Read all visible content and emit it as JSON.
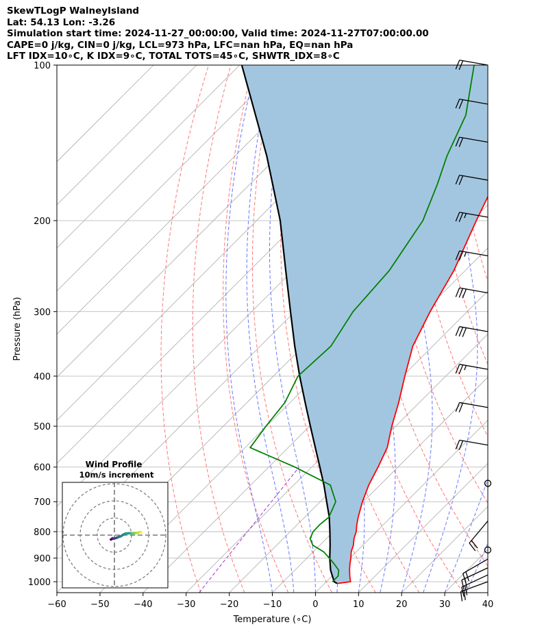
{
  "header": {
    "lines": [
      "SkewTLogP WalneyIsland",
      "Lat: 54.13   Lon: -3.26",
      "Simulation start time: 2024-11-27_00:00:00, Valid time: 2024-11-27T07:00:00.00",
      "CAPE=0 j/kg, CIN=0 j/kg, LCL=973 hPa, LFC=nan hPa, EQ=nan hPa",
      "LFT IDX=10∘C, K IDX=9∘C, TOTAL TOTS=45∘C, SHWTR_IDX=8∘C"
    ]
  },
  "chart_data": {
    "type": "line",
    "title": "SkewTLogP WalneyIsland",
    "xlabel": "Temperature (∘C)",
    "ylabel": "Pressure (hPa)",
    "xlim": [
      -60,
      40
    ],
    "ylim": [
      1050,
      100
    ],
    "y_scale": "log",
    "x_ticks": [
      "−60",
      "−50",
      "−40",
      "−30",
      "−20",
      "−10",
      "0",
      "10",
      "20",
      "30",
      "40"
    ],
    "y_ticks": [
      "1000",
      "900",
      "800",
      "700",
      "600",
      "500",
      "400",
      "300",
      "200",
      "100"
    ],
    "grid": true,
    "colors": {
      "temperature": "#ff0000",
      "dewpoint": "#008000",
      "parcel": "#000000",
      "cape_shading": "#a3c6e0",
      "dry_adiabats": "#ff6666",
      "moist_adiabats": "#5566ff",
      "mixing_ratio": "#9b30d0",
      "isotherms": "#aaaaaa"
    },
    "series": [
      {
        "role": "temperature",
        "points": [
          [
            1008,
            2.9
          ],
          [
            1000,
            5.6
          ],
          [
            975,
            4.1
          ],
          [
            950,
            2.7
          ],
          [
            925,
            1.4
          ],
          [
            900,
            0.2
          ],
          [
            875,
            -1.2
          ],
          [
            850,
            -2.2
          ],
          [
            825,
            -3.6
          ],
          [
            800,
            -4.7
          ],
          [
            775,
            -6.2
          ],
          [
            750,
            -7.6
          ],
          [
            700,
            -10.2
          ],
          [
            650,
            -12.6
          ],
          [
            600,
            -14.6
          ],
          [
            550,
            -17.0
          ],
          [
            500,
            -20.9
          ],
          [
            450,
            -24.8
          ],
          [
            400,
            -29.5
          ],
          [
            350,
            -34.6
          ],
          [
            300,
            -38.6
          ],
          [
            250,
            -42.6
          ],
          [
            200,
            -49.0
          ],
          [
            175,
            -52.6
          ],
          [
            150,
            -55.6
          ],
          [
            125,
            -59.1
          ],
          [
            100,
            -64.0
          ]
        ]
      },
      {
        "role": "dewpoint",
        "points": [
          [
            1000,
            1.4
          ],
          [
            975,
            1.4
          ],
          [
            950,
            0.2
          ],
          [
            925,
            -2.2
          ],
          [
            900,
            -4.8
          ],
          [
            875,
            -7.6
          ],
          [
            850,
            -11.6
          ],
          [
            825,
            -13.8
          ],
          [
            800,
            -14.7
          ],
          [
            775,
            -14.8
          ],
          [
            750,
            -14.4
          ],
          [
            700,
            -16.4
          ],
          [
            650,
            -21.5
          ],
          [
            600,
            -33.9
          ],
          [
            550,
            -48.8
          ],
          [
            500,
            -50.1
          ],
          [
            450,
            -51.2
          ],
          [
            400,
            -54.3
          ],
          [
            350,
            -53.6
          ],
          [
            300,
            -56.5
          ],
          [
            250,
            -57.6
          ],
          [
            200,
            -61.4
          ],
          [
            170,
            -66.5
          ],
          [
            150,
            -70.8
          ],
          [
            125,
            -75.9
          ],
          [
            100,
            -85.6
          ]
        ]
      },
      {
        "role": "parcel",
        "points": [
          [
            1008,
            2.9
          ],
          [
            1000,
            1.8
          ],
          [
            950,
            -1.7
          ],
          [
            900,
            -4.7
          ],
          [
            850,
            -7.6
          ],
          [
            800,
            -10.8
          ],
          [
            750,
            -14.3
          ],
          [
            700,
            -18.5
          ],
          [
            650,
            -23.0
          ],
          [
            600,
            -28.1
          ],
          [
            550,
            -33.7
          ],
          [
            500,
            -39.8
          ],
          [
            450,
            -46.5
          ],
          [
            400,
            -53.9
          ],
          [
            350,
            -62.0
          ],
          [
            300,
            -71.0
          ],
          [
            250,
            -81.6
          ],
          [
            200,
            -94.5
          ],
          [
            150,
            -112.6
          ],
          [
            100,
            -139.5
          ]
        ]
      }
    ],
    "wind_barbs": [
      {
        "p": 100,
        "speed_kt": 20,
        "dir_deg": 280
      },
      {
        "p": 119,
        "speed_kt": 20,
        "dir_deg": 280
      },
      {
        "p": 141,
        "speed_kt": 20,
        "dir_deg": 280
      },
      {
        "p": 167,
        "speed_kt": 20,
        "dir_deg": 280
      },
      {
        "p": 197,
        "speed_kt": 25,
        "dir_deg": 280
      },
      {
        "p": 234,
        "speed_kt": 25,
        "dir_deg": 280
      },
      {
        "p": 276,
        "speed_kt": 30,
        "dir_deg": 280
      },
      {
        "p": 328,
        "speed_kt": 30,
        "dir_deg": 280
      },
      {
        "p": 388,
        "speed_kt": 25,
        "dir_deg": 280
      },
      {
        "p": 460,
        "speed_kt": 20,
        "dir_deg": 280
      },
      {
        "p": 544,
        "speed_kt": 20,
        "dir_deg": 280
      },
      {
        "p": 645,
        "speed_kt": 0,
        "dir_deg": 0
      },
      {
        "p": 763,
        "speed_kt": 20,
        "dir_deg": 220
      },
      {
        "p": 868,
        "speed_kt": 0,
        "dir_deg": 0
      },
      {
        "p": 904,
        "speed_kt": 20,
        "dir_deg": 240
      },
      {
        "p": 940,
        "speed_kt": 20,
        "dir_deg": 245
      },
      {
        "p": 970,
        "speed_kt": 20,
        "dir_deg": 245
      },
      {
        "p": 1000,
        "speed_kt": 20,
        "dir_deg": 250
      }
    ],
    "inset": {
      "type": "hodograph",
      "title": "Wind Profile",
      "subtitle": "10m/s increment",
      "ring_increment_ms": 10,
      "colormap": "viridis",
      "points": [
        [
          -1.8,
          -2.2
        ],
        [
          -1.4,
          -2.0
        ],
        [
          -1.0,
          -1.6
        ],
        [
          -0.6,
          -1.8
        ],
        [
          0.2,
          -1.6
        ],
        [
          1.0,
          -1.4
        ],
        [
          2.0,
          -1.0
        ],
        [
          3.2,
          -0.6
        ],
        [
          4.4,
          0.2
        ],
        [
          5.6,
          0.8
        ],
        [
          7.0,
          0.9
        ],
        [
          8.2,
          1.0
        ],
        [
          9.0,
          1.0
        ],
        [
          10.0,
          1.0
        ],
        [
          11.0,
          1.1
        ],
        [
          12.0,
          1.2
        ],
        [
          12.8,
          1.6
        ],
        [
          13.4,
          1.4
        ]
      ]
    }
  }
}
